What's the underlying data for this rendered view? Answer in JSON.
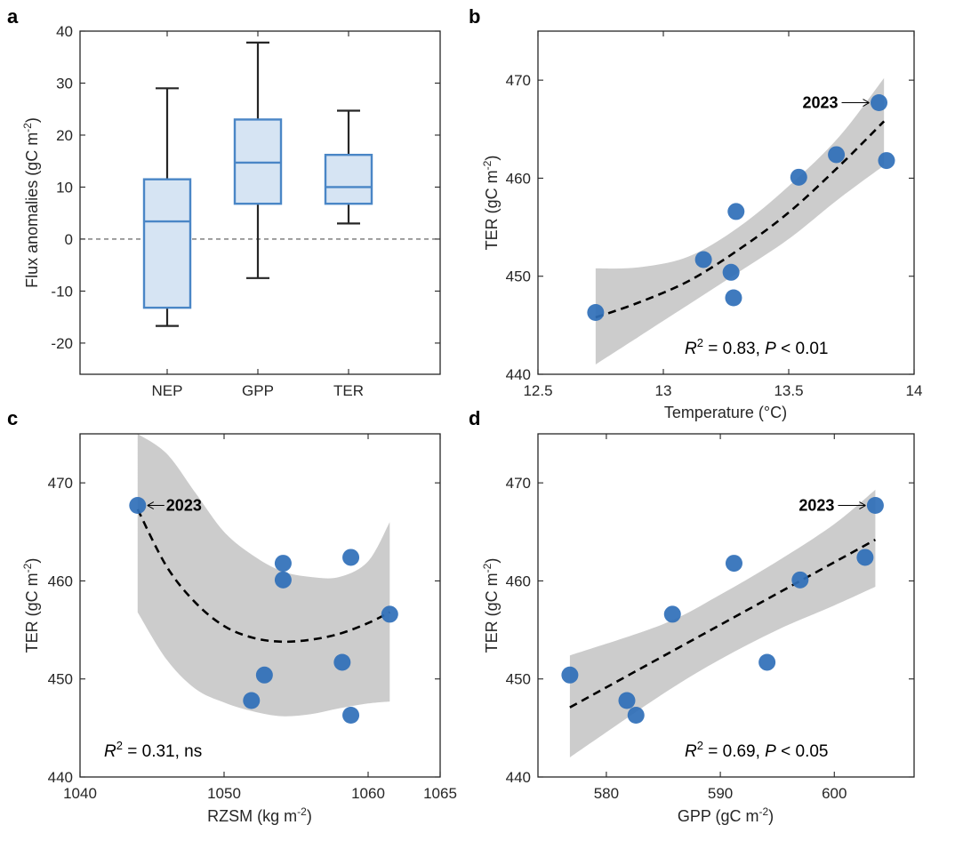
{
  "figure": {
    "panel_letters": [
      "a",
      "b",
      "c",
      "d"
    ]
  },
  "colors": {
    "point": "#2f6fb8",
    "box_edge": "#4a86c6",
    "box_fill": "#d6e4f3",
    "whisker": "#262626",
    "band": "#cccccc",
    "fit": "#000000"
  },
  "chart_data": [
    {
      "panel": "a",
      "type": "box",
      "categories": [
        "NEP",
        "GPP",
        "TER"
      ],
      "boxes": [
        {
          "name": "NEP",
          "whisker_low": -16.7,
          "q1": -13.2,
          "median": 3.4,
          "q3": 11.5,
          "whisker_high": 29.0
        },
        {
          "name": "GPP",
          "whisker_low": -7.5,
          "q1": 6.8,
          "median": 14.7,
          "q3": 23.0,
          "whisker_high": 37.8
        },
        {
          "name": "TER",
          "whisker_low": 3.0,
          "q1": 6.8,
          "median": 10.0,
          "q3": 16.2,
          "whisker_high": 24.7
        }
      ],
      "ylabel_main": "Flux anomalies (gC m",
      "ylabel_sup": "-2",
      "ylabel_tail": ")",
      "ylim": [
        -26,
        40
      ],
      "yticks": [
        -20,
        -10,
        0,
        10,
        20,
        30,
        40
      ],
      "ytick_labels": [
        "-20",
        "-10",
        "0",
        "10",
        "20",
        "30",
        "40"
      ],
      "reference_line": 0
    },
    {
      "panel": "b",
      "type": "scatter",
      "x": [
        12.73,
        13.16,
        13.27,
        13.28,
        13.29,
        13.54,
        13.69,
        13.86,
        13.89
      ],
      "y": [
        446.3,
        451.7,
        450.4,
        447.8,
        456.6,
        460.1,
        462.4,
        467.7,
        461.8
      ],
      "fit": {
        "type": "quadratic",
        "points": [
          [
            12.73,
            445.8
          ],
          [
            12.9,
            447.3
          ],
          [
            13.1,
            449.5
          ],
          [
            13.3,
            452.7
          ],
          [
            13.5,
            456.5
          ],
          [
            13.7,
            461.2
          ],
          [
            13.88,
            465.8
          ]
        ]
      },
      "ci_upper": [
        [
          12.73,
          450.8
        ],
        [
          12.9,
          450.9
        ],
        [
          13.1,
          452.0
        ],
        [
          13.3,
          455.0
        ],
        [
          13.5,
          459.2
        ],
        [
          13.7,
          464.2
        ],
        [
          13.88,
          470.2
        ]
      ],
      "ci_lower": [
        [
          12.73,
          441.0
        ],
        [
          12.9,
          443.8
        ],
        [
          13.1,
          447.1
        ],
        [
          13.3,
          450.4
        ],
        [
          13.5,
          453.8
        ],
        [
          13.7,
          457.9
        ],
        [
          13.88,
          461.3
        ]
      ],
      "xlabel": "Temperature (°C)",
      "ylabel_main": "TER (gC m",
      "ylabel_sup": "-2",
      "ylabel_tail": ")",
      "xlim": [
        12.5,
        14
      ],
      "ylim": [
        440,
        475
      ],
      "xticks": [
        12.5,
        13,
        13.5,
        14
      ],
      "xtick_labels": [
        "12.5",
        "13",
        "13.5",
        "14"
      ],
      "yticks": [
        440,
        450,
        460,
        470
      ],
      "ytick_labels": [
        "440",
        "450",
        "460",
        "470"
      ],
      "stat": {
        "r": "R",
        "exp": "2",
        "mid": " = 0.83, ",
        "p": "P",
        "tail": " < 0.01"
      },
      "annotation": {
        "text": "2023",
        "x": 13.86,
        "y": 467.7,
        "side": "left"
      }
    },
    {
      "panel": "c",
      "type": "scatter",
      "x": [
        1044.0,
        1051.9,
        1052.8,
        1054.1,
        1054.1,
        1058.2,
        1058.8,
        1058.8,
        1061.5
      ],
      "y": [
        467.7,
        447.8,
        450.4,
        461.8,
        460.1,
        451.7,
        462.4,
        446.3,
        456.6
      ],
      "fit": {
        "type": "quadratic",
        "points": [
          [
            1044.0,
            467.3
          ],
          [
            1046,
            461.5
          ],
          [
            1048,
            457.8
          ],
          [
            1050,
            455.4
          ],
          [
            1052,
            454.2
          ],
          [
            1054,
            453.8
          ],
          [
            1056,
            454.0
          ],
          [
            1058,
            454.6
          ],
          [
            1060,
            455.7
          ],
          [
            1061.5,
            456.8
          ]
        ]
      },
      "ci_upper": [
        [
          1044.0,
          475
        ],
        [
          1046,
          473
        ],
        [
          1048,
          469.0
        ],
        [
          1050,
          465.0
        ],
        [
          1052,
          462.6
        ],
        [
          1054,
          461.0
        ],
        [
          1056,
          460.4
        ],
        [
          1058,
          460.4
        ],
        [
          1060,
          462.0
        ],
        [
          1061.5,
          466.0
        ]
      ],
      "ci_lower": [
        [
          1044.0,
          456.8
        ],
        [
          1046,
          452.0
        ],
        [
          1048,
          449.0
        ],
        [
          1050,
          447.6
        ],
        [
          1052,
          446.7
        ],
        [
          1054,
          446.2
        ],
        [
          1056,
          446.4
        ],
        [
          1058,
          447.0
        ],
        [
          1060,
          447.5
        ],
        [
          1061.5,
          447.7
        ]
      ],
      "xlabel_main": "RZSM (kg m",
      "xlabel_sup": "-2",
      "xlabel_tail": ")",
      "ylabel_main": "TER (gC m",
      "ylabel_sup": "-2",
      "ylabel_tail": ")",
      "xlim": [
        1040,
        1065
      ],
      "ylim": [
        440,
        475
      ],
      "xticks": [
        1040,
        1050,
        1060,
        1065
      ],
      "xtick_labels": [
        "1040",
        "1050",
        "1060",
        "1065"
      ],
      "yticks": [
        440,
        450,
        460,
        470
      ],
      "ytick_labels": [
        "440",
        "450",
        "460",
        "470"
      ],
      "stat": {
        "r": "R",
        "exp": "2",
        "mid": " = 0.31, ns",
        "p": "",
        "tail": ""
      },
      "annotation": {
        "text": "2023",
        "x": 1044.0,
        "y": 467.7,
        "side": "right"
      }
    },
    {
      "panel": "d",
      "type": "scatter",
      "x": [
        576.8,
        581.8,
        582.6,
        585.8,
        591.2,
        594.1,
        597.0,
        602.7,
        603.6
      ],
      "y": [
        450.4,
        447.8,
        446.3,
        456.6,
        461.8,
        451.7,
        460.1,
        462.4,
        467.7
      ],
      "fit": {
        "type": "linear",
        "points": [
          [
            576.8,
            447.1
          ],
          [
            603.6,
            464.2
          ]
        ]
      },
      "ci_upper": [
        [
          576.8,
          452.4
        ],
        [
          585,
          455.6
        ],
        [
          590,
          458.6
        ],
        [
          595,
          462.0
        ],
        [
          600,
          465.8
        ],
        [
          603.6,
          469.3
        ]
      ],
      "ci_lower": [
        [
          576.8,
          442.0
        ],
        [
          585,
          448.5
        ],
        [
          590,
          452.0
        ],
        [
          595,
          455.0
        ],
        [
          600,
          457.5
        ],
        [
          603.6,
          459.4
        ]
      ],
      "xlabel_main": "GPP (gC m",
      "xlabel_sup": "-2",
      "xlabel_tail": ")",
      "ylabel_main": "TER (gC m",
      "ylabel_sup": "-2",
      "ylabel_tail": ")",
      "xlim": [
        574,
        607
      ],
      "ylim": [
        440,
        475
      ],
      "xticks": [
        580,
        590,
        600
      ],
      "xtick_labels": [
        "580",
        "590",
        "600"
      ],
      "yticks": [
        440,
        450,
        460,
        470
      ],
      "ytick_labels": [
        "440",
        "450",
        "460",
        "470"
      ],
      "stat": {
        "r": "R",
        "exp": "2",
        "mid": " = 0.69, ",
        "p": "P",
        "tail": " < 0.05"
      },
      "annotation": {
        "text": "2023",
        "x": 603.6,
        "y": 467.7,
        "side": "left"
      }
    }
  ]
}
